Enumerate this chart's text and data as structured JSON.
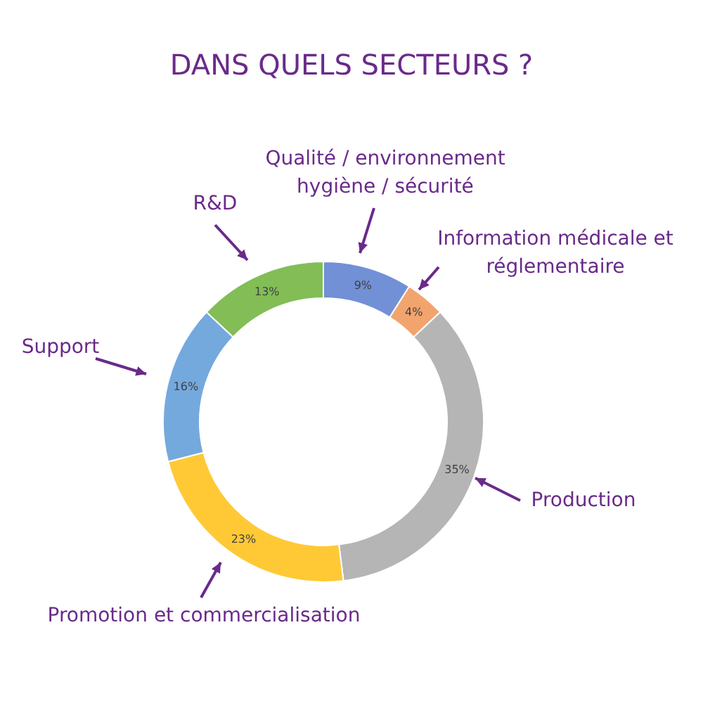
{
  "chart_data": {
    "type": "donut",
    "title": "DANS QUELS SECTEURS ?",
    "categories": [
      "Qualité / environnement hygiène / sécurité",
      "Information médicale et réglementaire",
      "Production",
      "Promotion et commercialisation",
      "Support",
      "R&D"
    ],
    "values": [
      9,
      4,
      35,
      23,
      16,
      13
    ],
    "colors": [
      "#7190d6",
      "#f2a46e",
      "#b5b5b5",
      "#ffc936",
      "#74a9de",
      "#82bd56"
    ],
    "value_labels": [
      "9%",
      "4%",
      "35%",
      "23%",
      "16%",
      "13%"
    ],
    "legend": false
  }
}
